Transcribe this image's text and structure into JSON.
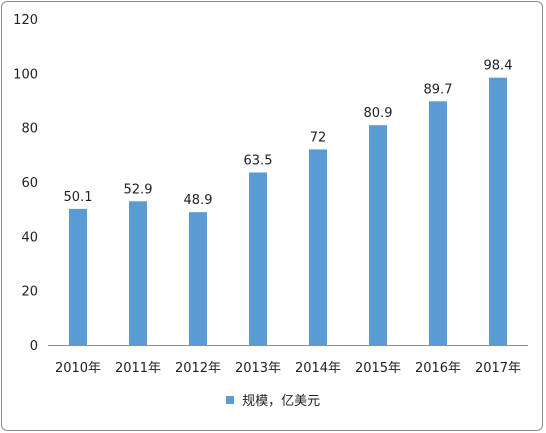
{
  "chart_data": {
    "type": "bar",
    "categories": [
      "2010年",
      "2011年",
      "2012年",
      "2013年",
      "2014年",
      "2015年",
      "2016年",
      "2017年"
    ],
    "series": [
      {
        "name": "规模，亿美元",
        "values": [
          50.1,
          52.9,
          48.9,
          63.5,
          72,
          80.9,
          89.7,
          98.4
        ]
      }
    ],
    "data_labels": [
      "50.1",
      "52.9",
      "48.9",
      "63.5",
      "72",
      "80.9",
      "89.7",
      "98.4"
    ],
    "y_ticks": [
      "0",
      "20",
      "40",
      "60",
      "80",
      "100",
      "120"
    ],
    "ylim": [
      0,
      120
    ],
    "grid": false,
    "legend_position": "bottom",
    "bar_color": "#5B9BD5",
    "axis_color": "#8c8c8c"
  }
}
